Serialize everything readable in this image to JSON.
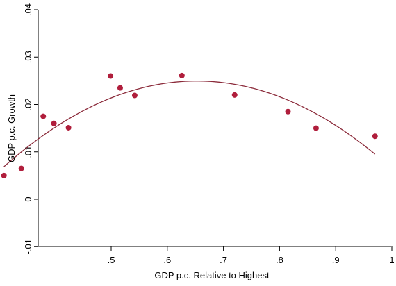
{
  "chart_data": {
    "type": "scatter",
    "title": "",
    "xlabel": "GDP p.c. Relative to Highest",
    "ylabel": "GDP p.c. Growth",
    "xlim": [
      0.3,
      1.0
    ],
    "ylim": [
      -0.01,
      0.04
    ],
    "x_ticks": [
      {
        "value": 0.5,
        "label": ".5"
      },
      {
        "value": 0.6,
        "label": ".6"
      },
      {
        "value": 0.7,
        "label": ".7"
      },
      {
        "value": 0.8,
        "label": ".8"
      },
      {
        "value": 0.9,
        "label": ".9"
      },
      {
        "value": 1.0,
        "label": "1"
      }
    ],
    "y_ticks": [
      {
        "value": -0.01,
        "label": "-.01"
      },
      {
        "value": 0.0,
        "label": "0"
      },
      {
        "value": 0.01,
        "label": ".01"
      },
      {
        "value": 0.02,
        "label": ".02"
      },
      {
        "value": 0.03,
        "label": ".03"
      },
      {
        "value": 0.04,
        "label": ".04"
      }
    ],
    "grid": false,
    "series": [
      {
        "type": "scatter",
        "color": "#b01e3c",
        "points": [
          {
            "x": 0.309,
            "y": 0.005
          },
          {
            "x": 0.34,
            "y": 0.0065
          },
          {
            "x": 0.379,
            "y": 0.0175
          },
          {
            "x": 0.398,
            "y": 0.016
          },
          {
            "x": 0.424,
            "y": 0.0151
          },
          {
            "x": 0.499,
            "y": 0.026
          },
          {
            "x": 0.516,
            "y": 0.0235
          },
          {
            "x": 0.542,
            "y": 0.0219
          },
          {
            "x": 0.626,
            "y": 0.0261
          },
          {
            "x": 0.72,
            "y": 0.022
          },
          {
            "x": 0.815,
            "y": 0.0185
          },
          {
            "x": 0.865,
            "y": 0.015
          },
          {
            "x": 0.97,
            "y": 0.0133
          }
        ]
      },
      {
        "type": "line",
        "color": "#8b2a3a",
        "fit": "quadratic",
        "x": [
          0.309,
          0.35,
          0.4,
          0.45,
          0.5,
          0.55,
          0.6,
          0.65,
          0.7,
          0.75,
          0.8,
          0.85,
          0.9,
          0.97
        ],
        "y": [
          0.0049,
          0.0095,
          0.0145,
          0.0188,
          0.0222,
          0.0245,
          0.0256,
          0.0255,
          0.0242,
          0.0218,
          0.0182,
          0.0134,
          0.0075,
          0.0079
        ]
      }
    ]
  }
}
